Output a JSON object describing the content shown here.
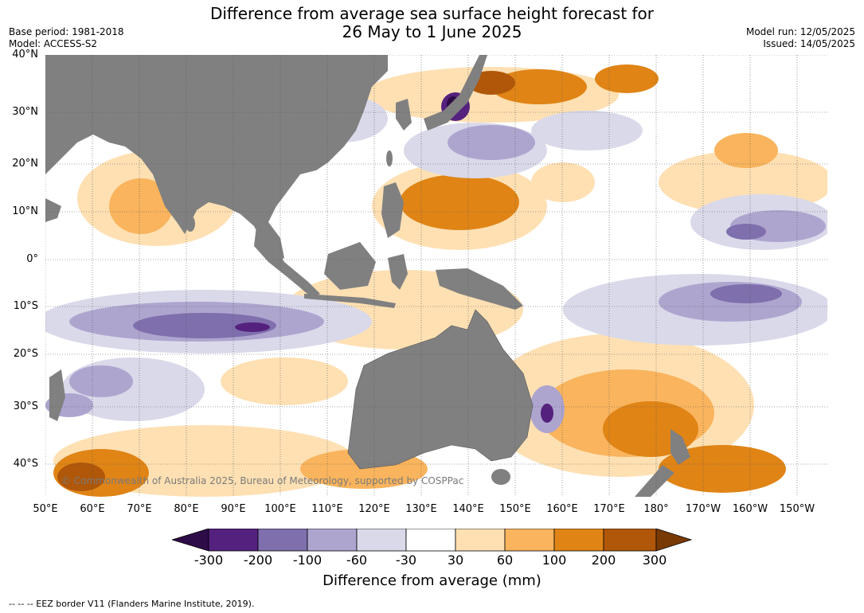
{
  "title": {
    "line1": "Difference from average sea surface height forecast for",
    "line2": "26 May to 1 June 2025"
  },
  "meta": {
    "base_period": "Base period: 1981-2018",
    "model": "Model: ACCESS-S2",
    "model_run": "Model run: 12/05/2025",
    "issued": "Issued: 14/05/2025"
  },
  "map": {
    "copyright": "© Commonwealth of Australia 2025, Bureau of Meteorology, supported by COSPPac",
    "lat_labels": [
      "40°N",
      "30°N",
      "20°N",
      "10°N",
      "0°",
      "10°S",
      "20°S",
      "30°S",
      "40°S"
    ],
    "lon_labels": [
      "50°E",
      "60°E",
      "70°E",
      "80°E",
      "90°E",
      "100°E",
      "110°E",
      "120°E",
      "130°E",
      "140°E",
      "150°E",
      "160°E",
      "170°E",
      "180°",
      "170°W",
      "160°W",
      "150°W"
    ],
    "land_color": "#808080",
    "ocean_color": "#ffffff"
  },
  "colorbar": {
    "label": "Difference from average (mm)",
    "ticks": [
      "-300",
      "-200",
      "-100",
      "-60",
      "-30",
      "30",
      "60",
      "100",
      "200",
      "300"
    ],
    "colors": [
      "#2d0c47",
      "#55217e",
      "#7f6fad",
      "#aea5cf",
      "#d9d9ea",
      "#ffffff",
      "#fee0b3",
      "#f9b45d",
      "#e08416",
      "#b05709",
      "#7a3a05"
    ]
  },
  "footer": {
    "legend": "--  --  -- EEZ border V11 (Flanders Marine Institute, 2019)."
  }
}
